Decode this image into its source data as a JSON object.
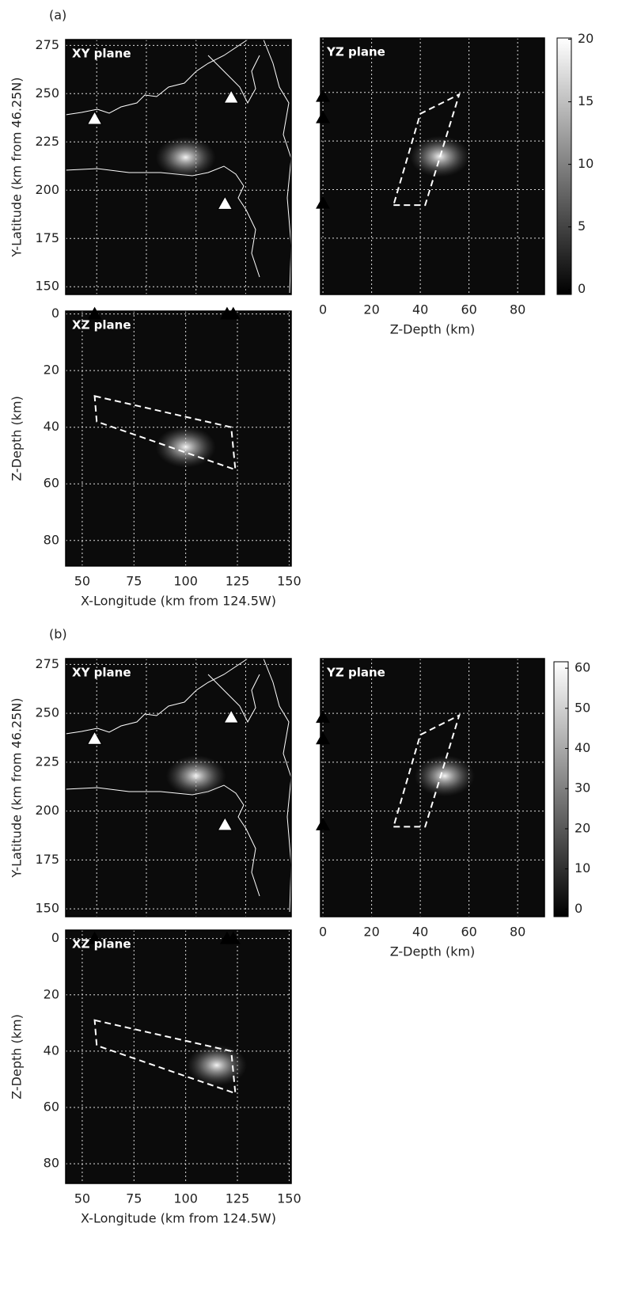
{
  "chart_data": [
    {
      "type": "heatmap",
      "panel_label": "(a)",
      "panel_title": "XY plane",
      "ylabel": "Y-Latitude (km from 46.25N)",
      "xlim": [
        42,
        151
      ],
      "ylim": [
        146,
        278
      ],
      "xgrid": [
        57,
        81,
        105,
        129
      ],
      "yticks": [
        150,
        175,
        200,
        225,
        250,
        275
      ],
      "hotspots": [
        {
          "x": 100,
          "y": 217
        }
      ],
      "stations": {
        "x": [
          56,
          122,
          119
        ],
        "y": [
          237,
          248,
          193
        ],
        "color": "#ffffff"
      }
    },
    {
      "type": "heatmap",
      "panel_title": "YZ plane",
      "xlabel": "Z-Depth (km)",
      "xlim": [
        -1,
        91
      ],
      "ylim": [
        146,
        278
      ],
      "xticks": [
        0,
        20,
        40,
        60,
        80
      ],
      "ygrid": [
        175,
        200,
        225,
        250
      ],
      "hotspots": [
        {
          "x": 48,
          "y": 217
        }
      ],
      "stations": {
        "x": [
          0,
          0,
          0
        ],
        "y": [
          248,
          237,
          193
        ],
        "color": "#000000"
      },
      "outline": {
        "x": [
          29,
          42,
          56,
          40
        ],
        "y": [
          192,
          192,
          249,
          239
        ]
      }
    },
    {
      "type": "heatmap",
      "panel_title": "XZ plane",
      "xlabel": "X-Longitude (km from 124.5W)",
      "ylabel": "Z-Depth (km)",
      "xlim": [
        42,
        151
      ],
      "ylim": [
        89,
        -1
      ],
      "xticks": [
        50,
        75,
        100,
        125,
        150
      ],
      "yticks": [
        0,
        20,
        40,
        60,
        80
      ],
      "hotspots": [
        {
          "x": 100,
          "y": 47
        }
      ],
      "stations": {
        "x": [
          56,
          120,
          123
        ],
        "y": [
          0,
          0,
          0
        ],
        "color": "#000000"
      },
      "outline": {
        "x": [
          56,
          122,
          124,
          57
        ],
        "y": [
          29,
          40,
          55,
          38
        ]
      }
    },
    {
      "type": "colorbar",
      "ylim": [
        -0.4,
        20.1
      ],
      "yticks": [
        0,
        5,
        10,
        15,
        20
      ]
    },
    {
      "type": "heatmap",
      "panel_label": "(b)",
      "panel_title": "XY plane",
      "ylabel": "Y-Latitude (km from 46.25N)",
      "xlim": [
        42,
        151
      ],
      "ylim": [
        146,
        278
      ],
      "xgrid": [
        57,
        81,
        105,
        129
      ],
      "yticks": [
        150,
        175,
        200,
        225,
        250,
        275
      ],
      "hotspots": [
        {
          "x": 105,
          "y": 218
        }
      ],
      "stations": {
        "x": [
          56,
          122,
          119
        ],
        "y": [
          237,
          248,
          193
        ],
        "color": "#ffffff"
      }
    },
    {
      "type": "heatmap",
      "panel_title": "YZ plane",
      "xlabel": "Z-Depth (km)",
      "xlim": [
        -1,
        91
      ],
      "ylim": [
        146,
        278
      ],
      "xticks": [
        0,
        20,
        40,
        60,
        80
      ],
      "ygrid": [
        175,
        200,
        225,
        250
      ],
      "hotspots": [
        {
          "x": 50,
          "y": 218
        }
      ],
      "stations": {
        "x": [
          0,
          0,
          0
        ],
        "y": [
          248,
          237,
          193
        ],
        "color": "#000000"
      },
      "outline": {
        "x": [
          29,
          42,
          56,
          40
        ],
        "y": [
          192,
          192,
          249,
          239
        ]
      }
    },
    {
      "type": "heatmap",
      "panel_title": "XZ plane",
      "xlabel": "X-Longitude (km from 124.5W)",
      "ylabel": "Z-Depth (km)",
      "xlim": [
        42,
        151
      ],
      "ylim": [
        87,
        -3
      ],
      "xticks": [
        50,
        75,
        100,
        125,
        150
      ],
      "yticks": [
        0,
        20,
        40,
        60,
        80
      ],
      "hotspots": [
        {
          "x": 115,
          "y": 45
        }
      ],
      "stations": {
        "x": [
          56,
          120,
          123
        ],
        "y": [
          0,
          0,
          0
        ],
        "color": "#000000"
      },
      "outline": {
        "x": [
          56,
          122,
          124,
          57
        ],
        "y": [
          29,
          40,
          55,
          38
        ]
      }
    },
    {
      "type": "colorbar",
      "ylim": [
        -1.9,
        61.6
      ],
      "yticks": [
        0,
        10,
        20,
        30,
        40,
        50,
        60
      ]
    }
  ]
}
